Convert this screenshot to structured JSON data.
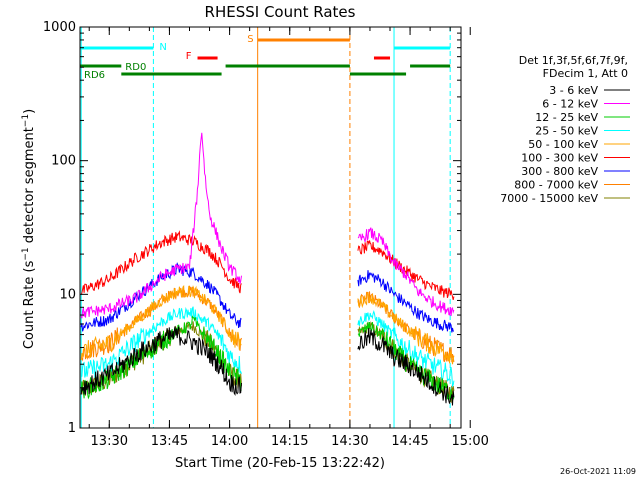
{
  "chart_data": {
    "type": "line",
    "title": "RHESSI Count Rates",
    "xlabel": "Start Time (20-Feb-15 13:22:42)",
    "ylabel": "Count Rate (s⁻¹ detector segment⁻¹)",
    "ylabel_parts": {
      "main": "Count Rate (s",
      "sup1": "−1",
      "mid": " detector segment",
      "sup2": "−1",
      "end": ")"
    },
    "yscale": "log",
    "ylim": [
      1,
      1000
    ],
    "xlim": [
      "13:22:42",
      "14:57:42"
    ],
    "x_ticks": [
      "13:30",
      "13:45",
      "14:00",
      "14:15",
      "14:30",
      "14:45",
      "15:00"
    ],
    "y_ticks": [
      "1",
      "10",
      "100",
      "1000"
    ],
    "grid": false,
    "legend_position": "right",
    "legend_header": [
      "Det 1f,3f,5f,6f,7f,9f,",
      "FDecim 1, Att 0"
    ],
    "footer_timestamp": "26-Oct-2021 11:09",
    "data_gap": {
      "start": "14:06",
      "end": "14:32"
    },
    "series": [
      {
        "name": "3 - 6 keV",
        "color": "#000000",
        "points": [
          [
            "13:23",
            2.0
          ],
          [
            "13:30",
            2.5
          ],
          [
            "13:37",
            3.6
          ],
          [
            "13:43",
            4.6
          ],
          [
            "13:47",
            5.0
          ],
          [
            "13:51",
            4.4
          ],
          [
            "13:55",
            3.6
          ],
          [
            "13:58",
            2.8
          ],
          [
            "14:00",
            2.2
          ],
          [
            "14:03",
            2.0
          ],
          [
            "14:32",
            4.2
          ],
          [
            "14:35",
            4.8
          ],
          [
            "14:38",
            4.2
          ],
          [
            "14:41",
            3.4
          ],
          [
            "14:44",
            3.0
          ],
          [
            "14:47",
            2.6
          ],
          [
            "14:50",
            2.2
          ],
          [
            "14:53",
            1.9
          ],
          [
            "14:56",
            1.6
          ]
        ]
      },
      {
        "name": "6 - 12 keV",
        "color": "#ff00ff",
        "points": [
          [
            "13:23",
            7.2
          ],
          [
            "13:30",
            7.8
          ],
          [
            "13:37",
            9.5
          ],
          [
            "13:43",
            13.5
          ],
          [
            "13:47",
            15.5
          ],
          [
            "13:50",
            16.0
          ],
          [
            "13:51",
            30.0
          ],
          [
            "13:52",
            60.0
          ],
          [
            "13:53",
            175.0
          ],
          [
            "13:54",
            70.0
          ],
          [
            "13:55",
            40.0
          ],
          [
            "13:58",
            22.0
          ],
          [
            "14:00",
            16.0
          ],
          [
            "14:03",
            12.5
          ],
          [
            "14:32",
            25.0
          ],
          [
            "14:35",
            29.0
          ],
          [
            "14:38",
            25.0
          ],
          [
            "14:41",
            17.0
          ],
          [
            "14:44",
            14.0
          ],
          [
            "14:47",
            10.5
          ],
          [
            "14:50",
            9.0
          ],
          [
            "14:53",
            8.0
          ],
          [
            "14:56",
            7.5
          ]
        ]
      },
      {
        "name": "12 - 25 keV",
        "color": "#00cc00",
        "points": [
          [
            "13:23",
            1.9
          ],
          [
            "13:30",
            2.3
          ],
          [
            "13:37",
            3.3
          ],
          [
            "13:43",
            4.4
          ],
          [
            "13:47",
            5.3
          ],
          [
            "13:50",
            5.8
          ],
          [
            "13:51",
            6.5
          ],
          [
            "13:52",
            5.7
          ],
          [
            "13:55",
            4.4
          ],
          [
            "13:58",
            3.3
          ],
          [
            "14:00",
            2.6
          ],
          [
            "14:03",
            2.2
          ],
          [
            "14:32",
            5.0
          ],
          [
            "14:35",
            5.8
          ],
          [
            "14:38",
            4.9
          ],
          [
            "14:41",
            3.9
          ],
          [
            "14:44",
            3.1
          ],
          [
            "14:47",
            2.6
          ],
          [
            "14:50",
            2.3
          ],
          [
            "14:53",
            2.0
          ],
          [
            "14:56",
            1.8
          ]
        ]
      },
      {
        "name": "25 - 50 keV",
        "color": "#00ffff",
        "points": [
          [
            "13:23",
            2.6
          ],
          [
            "13:30",
            3.0
          ],
          [
            "13:37",
            4.5
          ],
          [
            "13:43",
            6.2
          ],
          [
            "13:47",
            7.2
          ],
          [
            "13:51",
            7.3
          ],
          [
            "13:55",
            5.9
          ],
          [
            "13:58",
            4.5
          ],
          [
            "14:00",
            3.5
          ],
          [
            "14:03",
            2.9
          ],
          [
            "14:32",
            6.2
          ],
          [
            "14:35",
            7.1
          ],
          [
            "14:38",
            6.0
          ],
          [
            "14:41",
            4.8
          ],
          [
            "14:44",
            4.0
          ],
          [
            "14:47",
            3.4
          ],
          [
            "14:50",
            3.0
          ],
          [
            "14:53",
            2.7
          ],
          [
            "14:56",
            2.4
          ]
        ]
      },
      {
        "name": "50 - 100 keV",
        "color": "#ffa500",
        "points": [
          [
            "13:23",
            3.7
          ],
          [
            "13:30",
            4.3
          ],
          [
            "13:37",
            6.4
          ],
          [
            "13:43",
            9.0
          ],
          [
            "13:47",
            10.5
          ],
          [
            "13:51",
            10.5
          ],
          [
            "13:55",
            8.5
          ],
          [
            "13:58",
            6.5
          ],
          [
            "14:00",
            5.1
          ],
          [
            "14:03",
            4.2
          ],
          [
            "14:32",
            8.7
          ],
          [
            "14:35",
            9.6
          ],
          [
            "14:38",
            8.2
          ],
          [
            "14:41",
            6.7
          ],
          [
            "14:44",
            5.6
          ],
          [
            "14:47",
            4.8
          ],
          [
            "14:50",
            4.2
          ],
          [
            "14:53",
            3.8
          ],
          [
            "14:56",
            3.5
          ]
        ]
      },
      {
        "name": "100 - 300 keV",
        "color": "#ff0000",
        "points": [
          [
            "13:23",
            10.5
          ],
          [
            "13:30",
            13.0
          ],
          [
            "13:37",
            19.0
          ],
          [
            "13:43",
            24.5
          ],
          [
            "13:47",
            27.0
          ],
          [
            "13:51",
            25.0
          ],
          [
            "13:55",
            21.0
          ],
          [
            "13:58",
            16.5
          ],
          [
            "14:00",
            13.0
          ],
          [
            "14:03",
            11.0
          ],
          [
            "14:32",
            21.0
          ],
          [
            "14:35",
            23.0
          ],
          [
            "14:38",
            21.0
          ],
          [
            "14:41",
            17.5
          ],
          [
            "14:44",
            15.0
          ],
          [
            "14:47",
            13.0
          ],
          [
            "14:50",
            11.5
          ],
          [
            "14:53",
            10.5
          ],
          [
            "14:56",
            10.0
          ]
        ]
      },
      {
        "name": "300 - 800 keV",
        "color": "#0000ff",
        "points": [
          [
            "13:23",
            5.8
          ],
          [
            "13:30",
            6.5
          ],
          [
            "13:37",
            9.7
          ],
          [
            "13:43",
            13.5
          ],
          [
            "13:47",
            15.5
          ],
          [
            "13:51",
            14.5
          ],
          [
            "13:55",
            11.5
          ],
          [
            "13:58",
            8.8
          ],
          [
            "14:00",
            7.0
          ],
          [
            "14:03",
            5.9
          ],
          [
            "14:32",
            12.5
          ],
          [
            "14:35",
            14.0
          ],
          [
            "14:38",
            12.5
          ],
          [
            "14:41",
            10.0
          ],
          [
            "14:44",
            8.5
          ],
          [
            "14:47",
            7.2
          ],
          [
            "14:50",
            6.4
          ],
          [
            "14:53",
            5.9
          ],
          [
            "14:56",
            5.6
          ]
        ]
      },
      {
        "name": "800 - 7000 keV",
        "color": "#ff8000",
        "points": [
          [
            "13:23",
            3.7
          ],
          [
            "13:30",
            4.3
          ],
          [
            "13:37",
            6.4
          ],
          [
            "13:43",
            9.0
          ],
          [
            "13:47",
            10.5
          ],
          [
            "13:51",
            10.5
          ],
          [
            "13:55",
            8.5
          ],
          [
            "13:58",
            6.5
          ],
          [
            "14:00",
            5.1
          ],
          [
            "14:03",
            4.2
          ],
          [
            "14:32",
            8.7
          ],
          [
            "14:35",
            9.6
          ],
          [
            "14:38",
            8.2
          ],
          [
            "14:41",
            6.7
          ],
          [
            "14:44",
            5.6
          ],
          [
            "14:47",
            4.8
          ],
          [
            "14:50",
            4.2
          ],
          [
            "14:53",
            3.8
          ],
          [
            "14:56",
            3.5
          ]
        ]
      },
      {
        "name": "7000 - 15000 keV",
        "color": "#808000",
        "points": [
          [
            "13:23",
            1.9
          ],
          [
            "13:30",
            2.3
          ],
          [
            "13:37",
            3.3
          ],
          [
            "13:43",
            4.4
          ],
          [
            "13:47",
            5.3
          ],
          [
            "13:51",
            5.8
          ],
          [
            "13:55",
            4.4
          ],
          [
            "13:58",
            3.3
          ],
          [
            "14:00",
            2.6
          ],
          [
            "14:03",
            2.2
          ],
          [
            "14:32",
            5.0
          ],
          [
            "14:35",
            5.8
          ],
          [
            "14:38",
            4.9
          ],
          [
            "14:41",
            3.9
          ],
          [
            "14:44",
            3.1
          ],
          [
            "14:47",
            2.6
          ],
          [
            "14:50",
            2.3
          ],
          [
            "14:53",
            2.0
          ],
          [
            "14:56",
            1.8
          ]
        ]
      }
    ],
    "event_markers": [
      {
        "label": "N",
        "color": "#00ffff",
        "level": "upper",
        "segments": [
          [
            "13:22:42",
            "13:41"
          ],
          [
            "14:41",
            "14:55"
          ]
        ]
      },
      {
        "label": "F",
        "color": "#ff0000",
        "level": "middle",
        "segments": [
          [
            "13:52",
            "13:57"
          ],
          [
            "14:36",
            "14:40"
          ]
        ]
      },
      {
        "label": "S",
        "color": "#ff8000",
        "level": "top",
        "segments": [
          [
            "14:07",
            "14:30"
          ]
        ]
      },
      {
        "label": "RD0",
        "color": "#008000",
        "level": "lower",
        "segments": [
          [
            "13:22:42",
            "13:33"
          ],
          [
            "13:59",
            "14:30"
          ],
          [
            "14:45",
            "14:55"
          ]
        ]
      },
      {
        "label": "RD6",
        "color": "#008000",
        "level": "bottom",
        "segments": [
          [
            "13:33",
            "13:58"
          ],
          [
            "14:30",
            "14:44"
          ]
        ]
      }
    ],
    "vertical_lines": [
      {
        "time": "13:23",
        "color": "#00ffff",
        "style": "solid"
      },
      {
        "time": "13:41",
        "color": "#00ffff",
        "style": "dashed"
      },
      {
        "time": "14:07",
        "color": "#ff8000",
        "style": "solid"
      },
      {
        "time": "14:30",
        "color": "#ff8000",
        "style": "dashed"
      },
      {
        "time": "14:41",
        "color": "#00ffff",
        "style": "solid"
      },
      {
        "time": "14:55",
        "color": "#00ffff",
        "style": "dashed"
      }
    ]
  }
}
